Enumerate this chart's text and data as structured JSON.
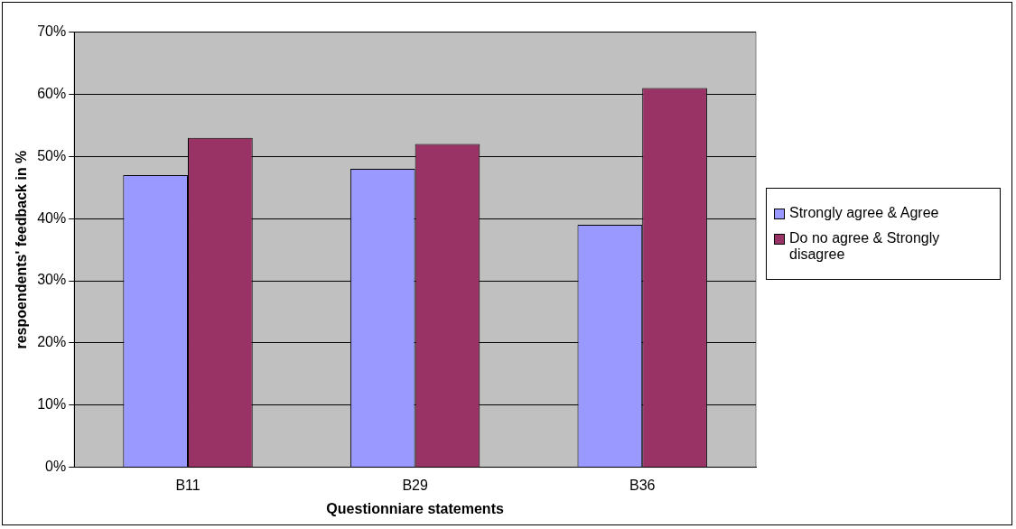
{
  "chart_data": {
    "type": "bar",
    "xlabel": "Questionniare statements",
    "ylabel": "respoendents' feedback in %",
    "categories": [
      "B11",
      "B29",
      "B36"
    ],
    "series": [
      {
        "name": "Strongly agree & Agree",
        "color": "#9999ff",
        "values": [
          47,
          48,
          39
        ]
      },
      {
        "name": "Do no agree & Strongly disagree",
        "color": "#993366",
        "values": [
          53,
          52,
          61
        ]
      }
    ],
    "ylim": [
      0,
      70
    ],
    "yticks": [
      {
        "value": 0,
        "label": "0%"
      },
      {
        "value": 10,
        "label": "10%"
      },
      {
        "value": 20,
        "label": "20%"
      },
      {
        "value": 30,
        "label": "30%"
      },
      {
        "value": 40,
        "label": "40%"
      },
      {
        "value": 50,
        "label": "50%"
      },
      {
        "value": 60,
        "label": "60%"
      },
      {
        "value": 70,
        "label": "70%"
      }
    ],
    "grid": "y",
    "legend": "right"
  }
}
